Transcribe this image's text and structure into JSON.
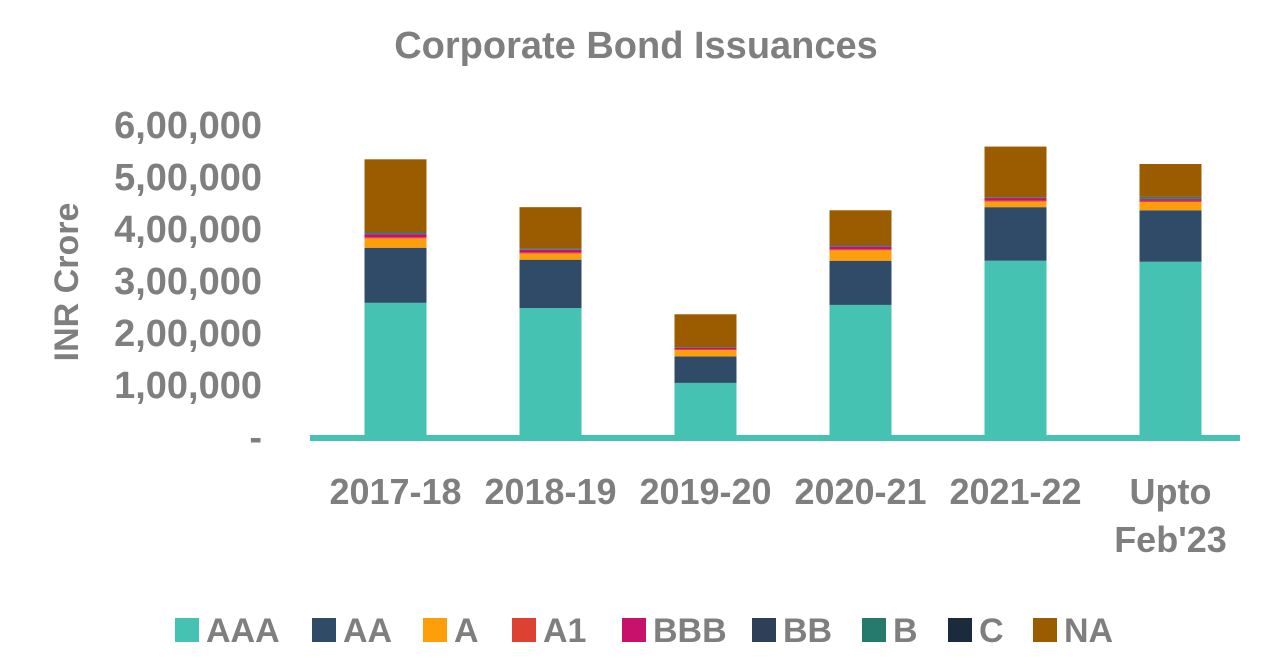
{
  "chart_data": {
    "type": "bar",
    "stacked": true,
    "title": "Corporate Bond Issuances",
    "xlabel": "",
    "ylabel": "INR Crore",
    "ylim": [
      0,
      600000
    ],
    "yticks": [
      {
        "value": 0,
        "label": "-"
      },
      {
        "value": 100000,
        "label": "1,00,000"
      },
      {
        "value": 200000,
        "label": "2,00,000"
      },
      {
        "value": 300000,
        "label": "3,00,000"
      },
      {
        "value": 400000,
        "label": "4,00,000"
      },
      {
        "value": 500000,
        "label": "5,00,000"
      },
      {
        "value": 600000,
        "label": "6,00,000"
      }
    ],
    "categories": [
      "2017-18",
      "2018-19",
      "2019-20",
      "2020-21",
      "2021-22",
      "Upto Feb'23"
    ],
    "category_lines": [
      [
        "2017-18"
      ],
      [
        "2018-19"
      ],
      [
        "2019-20"
      ],
      [
        "2020-21"
      ],
      [
        "2021-22"
      ],
      [
        "Upto",
        "Feb'23"
      ]
    ],
    "legend_position": "bottom",
    "grid": false,
    "series": [
      {
        "name": "AAA",
        "color": "#45c2b1",
        "values": [
          258000,
          248000,
          104000,
          254000,
          339000,
          337000
        ]
      },
      {
        "name": "AA",
        "color": "#2f4b68",
        "values": [
          106000,
          93000,
          51000,
          85000,
          103000,
          99000
        ]
      },
      {
        "name": "A",
        "color": "#ff9e0b",
        "values": [
          18000,
          12000,
          12000,
          20000,
          11000,
          16000
        ]
      },
      {
        "name": "A1",
        "color": "#dd4132",
        "values": [
          2000,
          2000,
          1500,
          2000,
          1500,
          2000
        ]
      },
      {
        "name": "BBB",
        "color": "#c8116b",
        "values": [
          6000,
          5000,
          3000,
          5000,
          5000,
          3000
        ]
      },
      {
        "name": "BB",
        "color": "#2e4057",
        "values": [
          1000,
          1000,
          500,
          1000,
          500,
          1000
        ]
      },
      {
        "name": "B",
        "color": "#267a6d",
        "values": [
          2000,
          1000,
          500,
          1000,
          1000,
          3000
        ]
      },
      {
        "name": "C",
        "color": "#1b2a3d",
        "values": [
          1000,
          1000,
          500,
          1000,
          500,
          1000
        ]
      },
      {
        "name": "NA",
        "color": "#9b5c00",
        "values": [
          140000,
          79000,
          63000,
          67000,
          97000,
          63000
        ]
      }
    ]
  },
  "axis_color": "#45c2b1"
}
